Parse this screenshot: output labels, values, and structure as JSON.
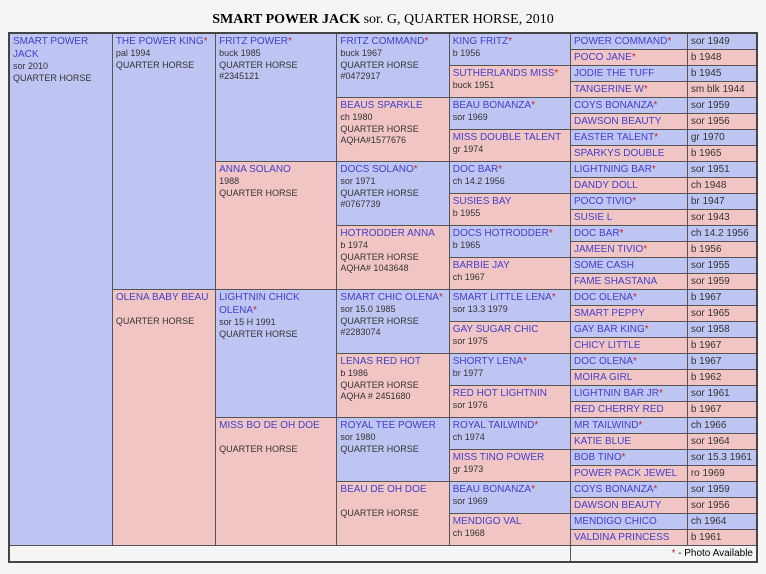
{
  "title_prefix": "SMART POWER JACK",
  "title_rest": " sor. G, QUARTER HORSE, 2010",
  "legend": "- Photo Available",
  "legend_ast": "*",
  "g1": {
    "name": "SMART POWER JACK",
    "det": "sor 2010\nQUARTER HORSE"
  },
  "g2": [
    {
      "name": "THE POWER KING",
      "ast": true,
      "det": "pal 1994\nQUARTER HORSE",
      "cls": "blue"
    },
    {
      "name": "OLENA BABY BEAU",
      "ast": false,
      "det": "\nQUARTER HORSE",
      "cls": "pink"
    }
  ],
  "g3": [
    {
      "name": "FRITZ POWER",
      "ast": true,
      "det": "buck 1985\nQUARTER HORSE\n#2345121",
      "cls": "blue"
    },
    {
      "name": "ANNA SOLANO",
      "ast": false,
      "det": "1988\nQUARTER HORSE",
      "cls": "pink"
    },
    {
      "name": "LIGHTNIN CHICK OLENA",
      "ast": true,
      "det": "sor 15 H 1991\nQUARTER HORSE",
      "cls": "blue"
    },
    {
      "name": "MISS BO DE OH DOE",
      "ast": false,
      "det": "\nQUARTER HORSE",
      "cls": "pink"
    }
  ],
  "g4": [
    {
      "name": "FRITZ COMMAND",
      "ast": true,
      "det": "buck 1967\nQUARTER HORSE\n#0472917",
      "cls": "blue"
    },
    {
      "name": "BEAUS SPARKLE",
      "ast": false,
      "det": "ch 1980\nQUARTER HORSE\nAQHA#1577676",
      "cls": "pink"
    },
    {
      "name": "DOCS SOLANO",
      "ast": true,
      "det": "sor 1971\nQUARTER HORSE\n#0767739",
      "cls": "blue"
    },
    {
      "name": "HOTRODDER ANNA",
      "ast": false,
      "det": "b 1974\nQUARTER HORSE\nAQHA# 1043648",
      "cls": "pink"
    },
    {
      "name": "SMART CHIC OLENA",
      "ast": true,
      "det": "sor 15.0 1985\nQUARTER HORSE\n#2283074",
      "cls": "blue"
    },
    {
      "name": "LENAS RED HOT",
      "ast": false,
      "det": "b 1986\nQUARTER HORSE\nAQHA # 2451680",
      "cls": "pink"
    },
    {
      "name": "ROYAL TEE POWER",
      "ast": false,
      "det": "sor 1980\nQUARTER HORSE",
      "cls": "blue"
    },
    {
      "name": "BEAU DE OH DOE",
      "ast": false,
      "det": "\nQUARTER HORSE",
      "cls": "pink"
    }
  ],
  "g5": [
    {
      "name": "KING FRITZ",
      "ast": true,
      "det": "b 1956",
      "cls": "blue"
    },
    {
      "name": "SUTHERLANDS MISS",
      "ast": true,
      "det": "buck 1951",
      "cls": "pink"
    },
    {
      "name": "BEAU BONANZA",
      "ast": true,
      "det": "sor 1969",
      "cls": "blue",
      "bar": "dred"
    },
    {
      "name": "MISS DOUBLE TALENT",
      "ast": false,
      "det": "gr 1974",
      "cls": "pink"
    },
    {
      "name": "DOC BAR",
      "ast": true,
      "det": "ch 14.2 1956",
      "cls": "blue",
      "bar": "grn"
    },
    {
      "name": "SUSIES BAY",
      "ast": false,
      "det": "b 1955",
      "cls": "pink"
    },
    {
      "name": "DOCS HOTRODDER",
      "ast": true,
      "det": "b 1965",
      "cls": "blue"
    },
    {
      "name": "BARBIE JAY",
      "ast": false,
      "det": "ch 1967",
      "cls": "pink"
    },
    {
      "name": "SMART LITTLE LENA",
      "ast": true,
      "det": "sor 13.3 1979",
      "cls": "blue"
    },
    {
      "name": "GAY SUGAR CHIC",
      "ast": false,
      "det": "sor 1975",
      "cls": "pink"
    },
    {
      "name": "SHORTY LENA",
      "ast": true,
      "det": "br 1977",
      "cls": "blue"
    },
    {
      "name": "RED HOT LIGHTNIN",
      "ast": false,
      "det": "sor 1976",
      "cls": "pink"
    },
    {
      "name": "ROYAL TAILWIND",
      "ast": true,
      "det": "ch 1974",
      "cls": "blue"
    },
    {
      "name": "MISS TINO POWER",
      "ast": false,
      "det": "gr 1973",
      "cls": "pink"
    },
    {
      "name": "BEAU BONANZA",
      "ast": true,
      "det": "sor 1969",
      "cls": "blue",
      "bar": "dred"
    },
    {
      "name": "MENDIGO VAL",
      "ast": false,
      "det": "ch 1968",
      "cls": "pink"
    }
  ],
  "g6": [
    {
      "name": "POWER COMMAND",
      "ast": true,
      "yr": "sor 1949",
      "cls": "blue"
    },
    {
      "name": "POCO JANE",
      "ast": true,
      "yr": "b 1948",
      "cls": "pink"
    },
    {
      "name": "JODIE THE TUFF",
      "ast": false,
      "yr": "b 1945",
      "cls": "blue"
    },
    {
      "name": "TANGERINE W",
      "ast": true,
      "yr": "sm blk 1944",
      "cls": "pink"
    },
    {
      "name": "COYS BONANZA",
      "ast": true,
      "yr": "sor 1959",
      "cls": "blue"
    },
    {
      "name": "DAWSON BEAUTY",
      "ast": false,
      "yr": "sor 1956",
      "cls": "pink"
    },
    {
      "name": "EASTER TALENT",
      "ast": true,
      "yr": "gr 1970",
      "cls": "blue"
    },
    {
      "name": "SPARKYS DOUBLE",
      "ast": false,
      "yr": "b 1965",
      "cls": "pink"
    },
    {
      "name": "LIGHTNING BAR",
      "ast": true,
      "yr": "sor 1951",
      "cls": "blue"
    },
    {
      "name": "DANDY DOLL",
      "ast": false,
      "yr": "ch 1948",
      "cls": "pink"
    },
    {
      "name": "POCO TIVIO",
      "ast": true,
      "yr": "br 1947",
      "cls": "blue"
    },
    {
      "name": "SUSIE L",
      "ast": false,
      "yr": "sor 1943",
      "cls": "pink"
    },
    {
      "name": "DOC BAR",
      "ast": true,
      "yr": "ch 14.2 1956",
      "cls": "blue",
      "bar": "grn"
    },
    {
      "name": "JAMEEN TIVIO",
      "ast": true,
      "yr": "b 1956",
      "cls": "pink"
    },
    {
      "name": "SOME CASH",
      "ast": false,
      "yr": "sor 1955",
      "cls": "blue"
    },
    {
      "name": "FAME SHASTANA",
      "ast": false,
      "yr": "sor 1959",
      "cls": "pink"
    },
    {
      "name": "DOC OLENA",
      "ast": true,
      "yr": "b 1967",
      "cls": "blue",
      "bar": "grn"
    },
    {
      "name": "SMART PEPPY",
      "ast": false,
      "yr": "sor 1965",
      "cls": "pink"
    },
    {
      "name": "GAY BAR KING",
      "ast": true,
      "yr": "sor 1958",
      "cls": "blue"
    },
    {
      "name": "CHICY LITTLE",
      "ast": false,
      "yr": "b 1967",
      "cls": "pink"
    },
    {
      "name": "DOC OLENA",
      "ast": true,
      "yr": "b 1967",
      "cls": "blue",
      "bar": "grn"
    },
    {
      "name": "MOIRA GIRL",
      "ast": false,
      "yr": "b 1962",
      "cls": "pink"
    },
    {
      "name": "LIGHTNIN BAR JR",
      "ast": true,
      "yr": "sor 1961",
      "cls": "blue"
    },
    {
      "name": "RED CHERRY RED",
      "ast": false,
      "yr": "b 1967",
      "cls": "pink"
    },
    {
      "name": "MR TAILWIND",
      "ast": true,
      "yr": "ch 1966",
      "cls": "blue"
    },
    {
      "name": "KATIE BLUE",
      "ast": false,
      "yr": "sor 1964",
      "cls": "pink"
    },
    {
      "name": "BOB TINO",
      "ast": true,
      "yr": "sor 15.3 1961",
      "cls": "blue"
    },
    {
      "name": "POWER PACK JEWEL",
      "ast": false,
      "yr": "ro 1969",
      "cls": "pink"
    },
    {
      "name": "COYS BONANZA",
      "ast": true,
      "yr": "sor 1959",
      "cls": "blue"
    },
    {
      "name": "DAWSON BEAUTY",
      "ast": false,
      "yr": "sor 1956",
      "cls": "pink"
    },
    {
      "name": "MENDIGO CHICO",
      "ast": false,
      "yr": "ch 1964",
      "cls": "blue"
    },
    {
      "name": "VALDINA PRINCESS",
      "ast": false,
      "yr": "b 1961",
      "cls": "pink"
    }
  ]
}
